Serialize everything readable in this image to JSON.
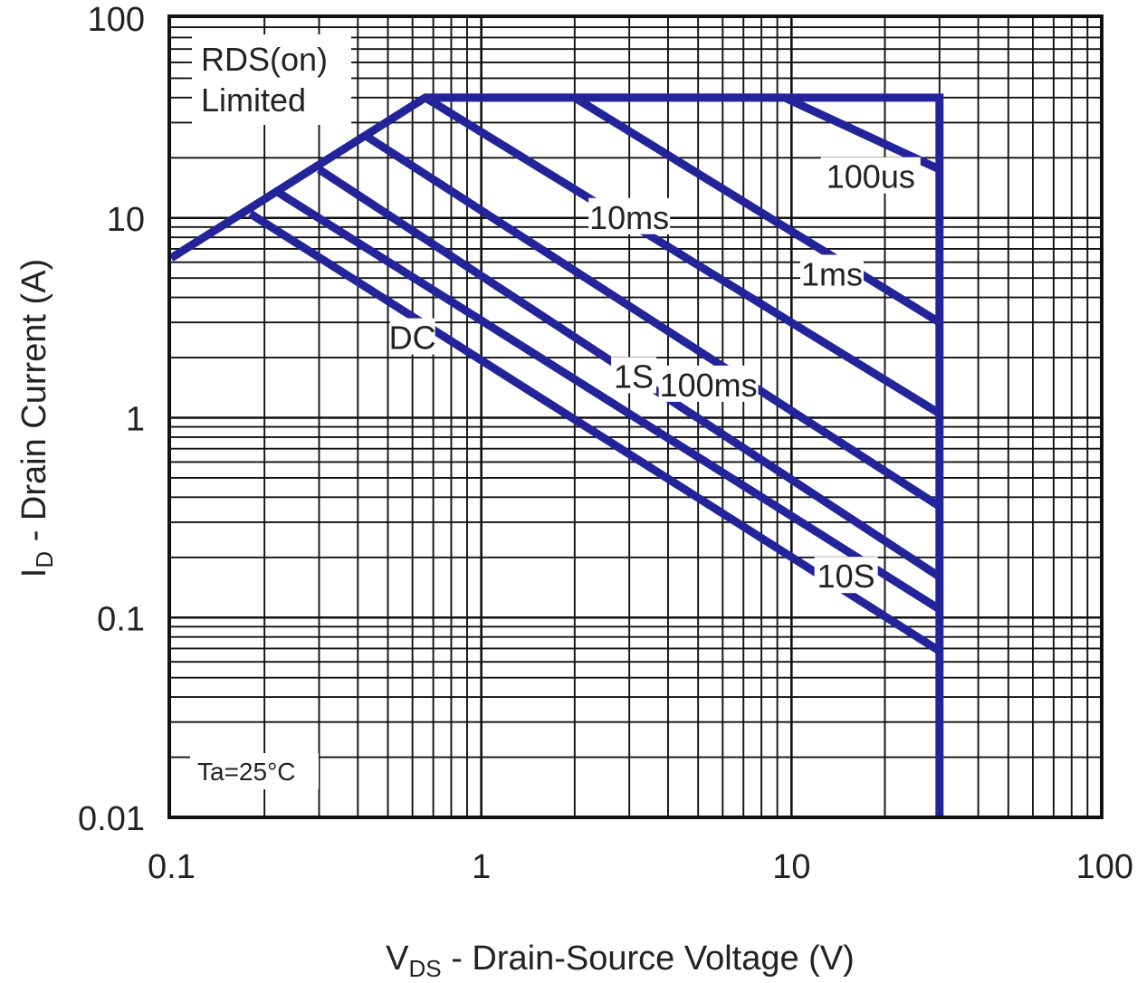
{
  "chart_data": {
    "type": "line",
    "xlabel": {
      "main": "V",
      "sub": "DS",
      "rest": " - Drain-Source Voltage (V)"
    },
    "ylabel": {
      "main": "I",
      "sub": "D",
      "rest": " - Drain Current (A)"
    },
    "x_scale": "log",
    "y_scale": "log",
    "xlim": [
      0.1,
      100
    ],
    "ylim": [
      0.01,
      100
    ],
    "grid": true,
    "x_ticks": [
      {
        "value": 0.1,
        "label": "0.1"
      },
      {
        "value": 1,
        "label": "1"
      },
      {
        "value": 10,
        "label": "10"
      },
      {
        "value": 100,
        "label": "100"
      }
    ],
    "y_ticks": [
      {
        "value": 0.01,
        "label": "0.01"
      },
      {
        "value": 0.1,
        "label": "0.1"
      },
      {
        "value": 1,
        "label": "1"
      },
      {
        "value": 10,
        "label": "10"
      },
      {
        "value": 100,
        "label": "100"
      }
    ],
    "limits": {
      "rds_on_limited": "RDS(on)\nLimited",
      "condition": "Ta=25°C",
      "id_max": 40,
      "vds_max": 30
    },
    "series": [
      {
        "name": "100us",
        "x": [
          0.66,
          9.5,
          30
        ],
        "y": [
          40,
          40,
          17.5
        ],
        "label_at": [
          18,
          16
        ]
      },
      {
        "name": "1ms",
        "x": [
          2.0,
          30
        ],
        "y": [
          40,
          3.0
        ],
        "label_at": [
          13.5,
          5.2
        ]
      },
      {
        "name": "10ms",
        "x": [
          0.66,
          30
        ],
        "y": [
          40,
          1.05
        ],
        "label_at": [
          3.0,
          10
        ]
      },
      {
        "name": "100ms",
        "x": [
          0.42,
          30
        ],
        "y": [
          26,
          0.36
        ],
        "label_at": [
          5.4,
          1.45
        ]
      },
      {
        "name": "1S",
        "x": [
          0.3,
          30
        ],
        "y": [
          17.5,
          0.16
        ],
        "label_at": [
          3.1,
          1.6
        ]
      },
      {
        "name": "10S",
        "x": [
          0.22,
          30
        ],
        "y": [
          13.5,
          0.11
        ],
        "label_at": [
          15,
          0.16
        ]
      },
      {
        "name": "DC",
        "x": [
          0.18,
          30
        ],
        "y": [
          10.5,
          0.068
        ],
        "label_at": [
          0.6,
          2.5
        ]
      }
    ],
    "envelope": {
      "name": "RDS(on)",
      "x": [
        0.1,
        0.66,
        30,
        30
      ],
      "y": [
        6.3,
        40,
        40,
        0.01
      ]
    }
  }
}
